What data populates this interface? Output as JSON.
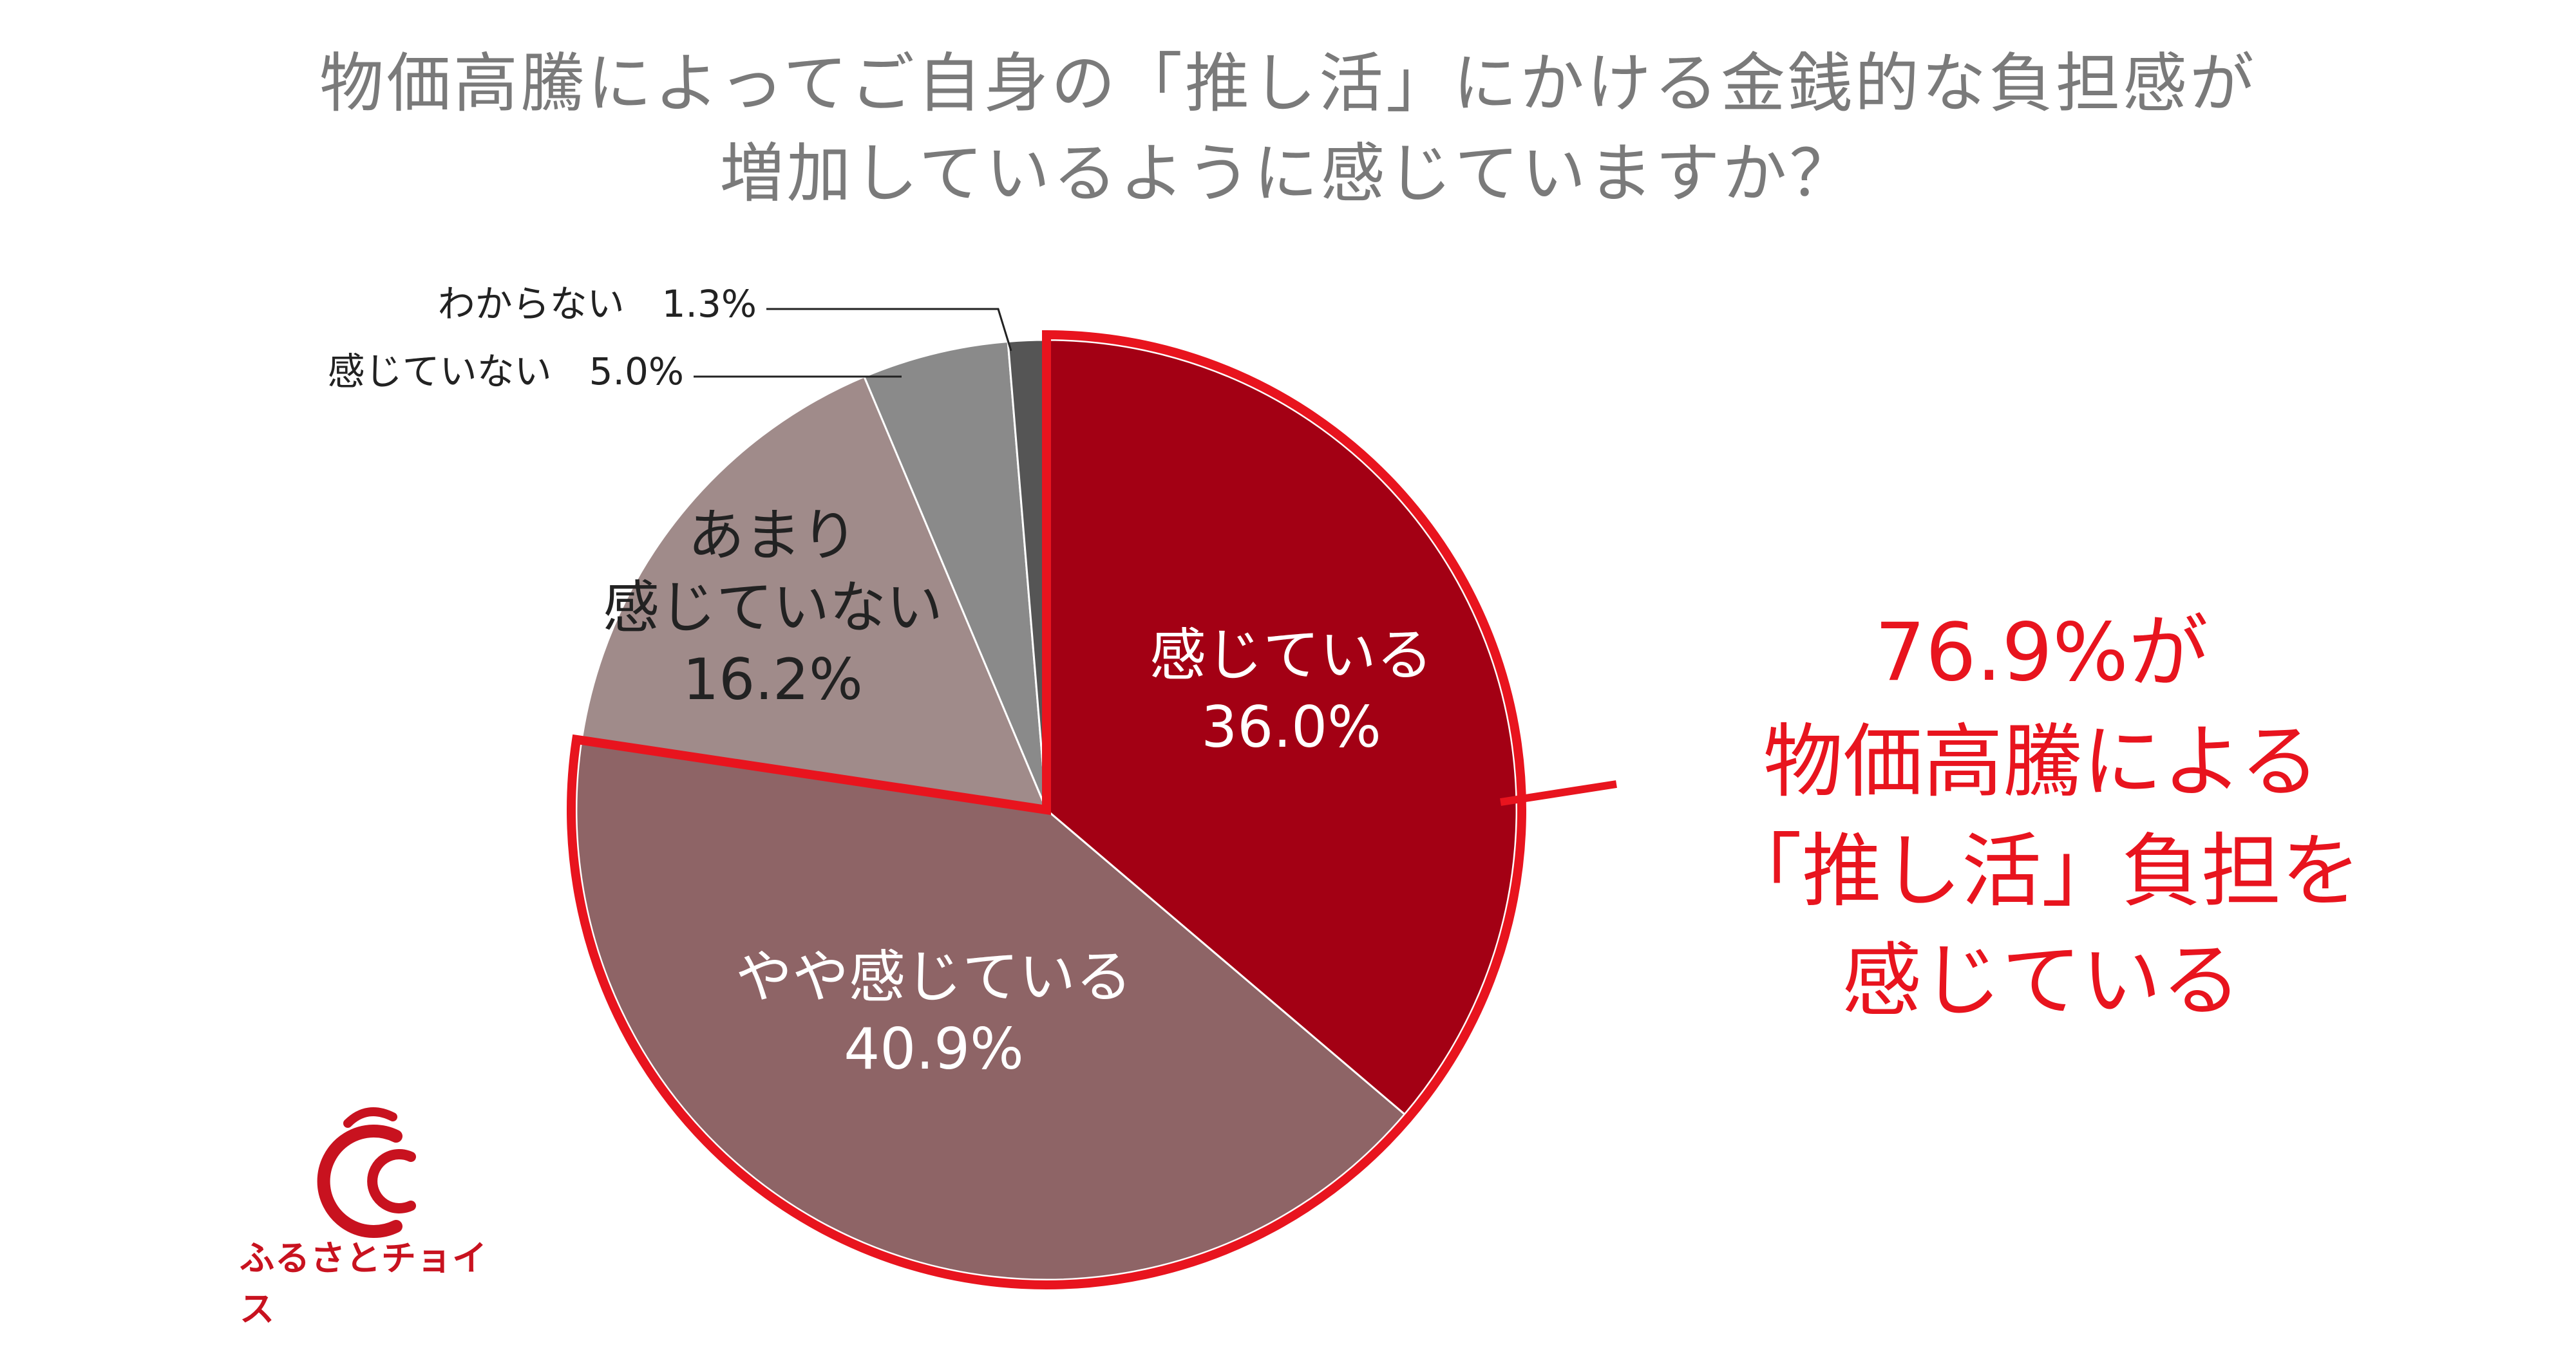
{
  "chart_data": {
    "type": "pie",
    "title_lines": [
      "物価高騰によってご自身の「推し活」にかける金銭的な負担感が",
      "増加しているように感じていますか？"
    ],
    "slices": [
      {
        "label": "感じている",
        "label_lines": [
          "感じている"
        ],
        "value": 36.0,
        "value_text": "36.0%",
        "color": "#a30014",
        "label_color": "#ffffff",
        "highlight": true
      },
      {
        "label": "やや感じている",
        "label_lines": [
          "やや感じている"
        ],
        "value": 40.9,
        "value_text": "40.9%",
        "color": "#8e6466",
        "label_color": "#ffffff",
        "highlight": true
      },
      {
        "label": "あまり感じていない",
        "label_lines": [
          "あまり",
          "感じていない"
        ],
        "value": 16.2,
        "value_text": "16.2%",
        "color": "#a08b8a",
        "label_color": "#222222",
        "highlight": false
      },
      {
        "label": "感じていない",
        "label_lines": [
          "感じていない"
        ],
        "value": 5.0,
        "value_text": "5.0%",
        "color": "#8a8a8a",
        "label_color": "#222222",
        "highlight": false,
        "external": true
      },
      {
        "label": "わからない",
        "label_lines": [
          "わからない"
        ],
        "value": 1.3,
        "value_text": "1.3%",
        "color": "#555555",
        "label_color": "#222222",
        "highlight": false,
        "external": true
      }
    ],
    "start_angle_deg": 0,
    "direction": "clockwise",
    "highlight_color": "#e8141e"
  },
  "callout": {
    "lines": [
      "76.9%が",
      "物価高騰による",
      "「推し活」負担を",
      "感じている"
    ],
    "color": "#e8141e"
  },
  "logo": {
    "text": "ふるさとチョイス",
    "color": "#c8121f"
  }
}
